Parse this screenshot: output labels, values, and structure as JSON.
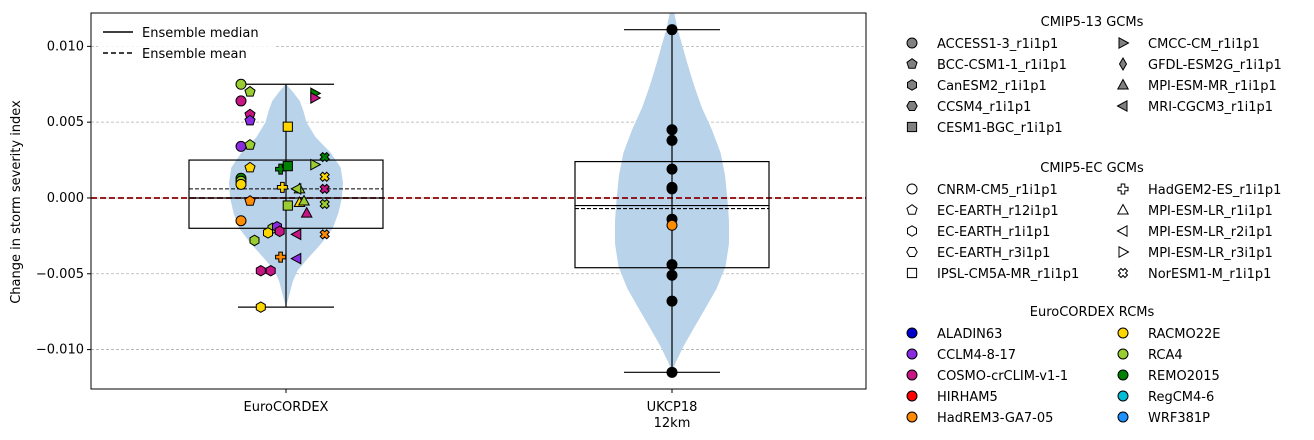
{
  "chart_data": {
    "type": "violin",
    "ylabel": "Change in storm severity index",
    "ylim": [
      -0.0126,
      0.0122
    ],
    "yticks": [
      -0.01,
      -0.005,
      0.0,
      0.005,
      0.01
    ],
    "ytick_labels": [
      "−0.010",
      "−0.005",
      "0.000",
      "0.005",
      "0.010"
    ],
    "grid": "y-dashed",
    "reference_line": {
      "y": 0.0,
      "color": "#8b0000",
      "style": "dashed"
    },
    "categories": [
      {
        "label": "EuroCORDEX",
        "label2": ""
      },
      {
        "label": "UKCP18",
        "label2": "12km"
      }
    ],
    "violin_color": "#b9d3ea",
    "groups": [
      {
        "category": 0,
        "min": -0.0072,
        "max": 0.0075,
        "q1": -0.002,
        "q3": 0.0025,
        "median": 0.0,
        "mean": 0.0006,
        "violin_halfwidth": [
          [
            -0.0072,
            0.0
          ],
          [
            -0.0065,
            0.05
          ],
          [
            -0.0055,
            0.12
          ],
          [
            -0.0048,
            0.2
          ],
          [
            -0.004,
            0.38
          ],
          [
            -0.003,
            0.62
          ],
          [
            -0.002,
            0.82
          ],
          [
            -0.001,
            0.92
          ],
          [
            0.0,
            0.98
          ],
          [
            0.001,
            1.0
          ],
          [
            0.002,
            0.96
          ],
          [
            0.003,
            0.78
          ],
          [
            0.004,
            0.52
          ],
          [
            0.005,
            0.36
          ],
          [
            0.0058,
            0.3
          ],
          [
            0.0064,
            0.24
          ],
          [
            0.007,
            0.12
          ],
          [
            0.0075,
            0.0
          ]
        ],
        "points": [
          {
            "dx": -0.5,
            "y": 0.0075,
            "shape": "circle",
            "color": "#9acd32"
          },
          {
            "dx": -0.4,
            "y": 0.007,
            "shape": "pentagon",
            "color": "#9acd32"
          },
          {
            "dx": -0.5,
            "y": 0.0064,
            "shape": "circle",
            "color": "#c71585"
          },
          {
            "dx": -0.4,
            "y": 0.0055,
            "shape": "pentagon",
            "color": "#c71585"
          },
          {
            "dx": -0.4,
            "y": 0.0051,
            "shape": "pentagon",
            "color": "#8a2be2"
          },
          {
            "dx": -0.5,
            "y": 0.0034,
            "shape": "circle",
            "color": "#8a2be2"
          },
          {
            "dx": -0.4,
            "y": 0.0035,
            "shape": "pentagon",
            "color": "#9acd32"
          },
          {
            "dx": -0.4,
            "y": 0.002,
            "shape": "pentagon",
            "color": "#ffd700"
          },
          {
            "dx": -0.5,
            "y": 0.0013,
            "shape": "circle",
            "color": "#008000"
          },
          {
            "dx": -0.5,
            "y": 0.0011,
            "shape": "circle",
            "color": "#9acd32"
          },
          {
            "dx": -0.5,
            "y": 0.0009,
            "shape": "circle",
            "color": "#ffd700"
          },
          {
            "dx": -0.4,
            "y": -0.0002,
            "shape": "pentagon",
            "color": "#ff8c00"
          },
          {
            "dx": -0.5,
            "y": -0.0015,
            "shape": "circle",
            "color": "#ff8c00"
          },
          {
            "dx": -0.35,
            "y": -0.0028,
            "shape": "hexagon",
            "color": "#9acd32"
          },
          {
            "dx": -0.15,
            "y": -0.002,
            "shape": "hexagon",
            "color": "#9acd32"
          },
          {
            "dx": -0.2,
            "y": -0.0023,
            "shape": "hexagon",
            "color": "#ffd700"
          },
          {
            "dx": -0.1,
            "y": -0.0019,
            "shape": "hexagon",
            "color": "#8a2be2"
          },
          {
            "dx": -0.07,
            "y": -0.0022,
            "shape": "hexagon",
            "color": "#c71585"
          },
          {
            "dx": -0.28,
            "y": -0.0048,
            "shape": "hexagon",
            "color": "#c71585"
          },
          {
            "dx": -0.17,
            "y": -0.0048,
            "shape": "hexagon",
            "color": "#c71585"
          },
          {
            "dx": -0.28,
            "y": -0.0072,
            "shape": "hexagon",
            "color": "#ffd700"
          },
          {
            "dx": -0.06,
            "y": 0.0019,
            "shape": "plus",
            "color": "#008000"
          },
          {
            "dx": -0.04,
            "y": 0.0007,
            "shape": "plus",
            "color": "#ffd700"
          },
          {
            "dx": -0.06,
            "y": -0.0039,
            "shape": "plus",
            "color": "#ff8c00"
          },
          {
            "dx": 0.02,
            "y": 0.0047,
            "shape": "square",
            "color": "#ffd700"
          },
          {
            "dx": 0.02,
            "y": 0.0021,
            "shape": "square",
            "color": "#008000"
          },
          {
            "dx": 0.02,
            "y": -0.0005,
            "shape": "square",
            "color": "#9acd32"
          },
          {
            "dx": 0.15,
            "y": -0.0003,
            "shape": "tri-up",
            "color": "#ffd700"
          },
          {
            "dx": 0.15,
            "y": 0.0006,
            "shape": "tri-up",
            "color": "#9acd32"
          },
          {
            "dx": 0.2,
            "y": -0.0002,
            "shape": "tri-up",
            "color": "#9acd32"
          },
          {
            "dx": 0.23,
            "y": -0.001,
            "shape": "tri-up",
            "color": "#c71585"
          },
          {
            "dx": 0.12,
            "y": 0.0006,
            "shape": "tri-left",
            "color": "#9acd32"
          },
          {
            "dx": 0.12,
            "y": -0.0024,
            "shape": "tri-left",
            "color": "#c71585"
          },
          {
            "dx": 0.12,
            "y": -0.004,
            "shape": "tri-left",
            "color": "#8a2be2"
          },
          {
            "dx": 0.32,
            "y": 0.0069,
            "shape": "tri-right",
            "color": "#008000"
          },
          {
            "dx": 0.32,
            "y": 0.0066,
            "shape": "tri-right",
            "color": "#c71585"
          },
          {
            "dx": 0.32,
            "y": 0.0022,
            "shape": "tri-right",
            "color": "#9acd32"
          },
          {
            "dx": 0.43,
            "y": 0.0027,
            "shape": "x",
            "color": "#008000"
          },
          {
            "dx": 0.43,
            "y": 0.0014,
            "shape": "x",
            "color": "#ffd700"
          },
          {
            "dx": 0.43,
            "y": 0.0006,
            "shape": "x",
            "color": "#c71585"
          },
          {
            "dx": 0.43,
            "y": -0.0004,
            "shape": "x",
            "color": "#9acd32"
          },
          {
            "dx": 0.43,
            "y": -0.0024,
            "shape": "x",
            "color": "#ff8c00"
          }
        ]
      },
      {
        "category": 1,
        "min": -0.0115,
        "max": 0.0111,
        "q1": -0.0046,
        "q3": 0.0024,
        "median": -0.0005,
        "mean": -0.0007,
        "violin_halfwidth": [
          [
            -0.0115,
            0.0
          ],
          [
            -0.0108,
            0.07
          ],
          [
            -0.0098,
            0.2
          ],
          [
            -0.0088,
            0.35
          ],
          [
            -0.0075,
            0.55
          ],
          [
            -0.006,
            0.78
          ],
          [
            -0.0045,
            0.94
          ],
          [
            -0.003,
            1.0
          ],
          [
            -0.0015,
            1.0
          ],
          [
            0.0,
            0.97
          ],
          [
            0.0015,
            0.93
          ],
          [
            0.003,
            0.85
          ],
          [
            0.0045,
            0.7
          ],
          [
            0.006,
            0.52
          ],
          [
            0.0075,
            0.38
          ],
          [
            0.009,
            0.26
          ],
          [
            0.0102,
            0.17
          ],
          [
            0.0111,
            0.1
          ],
          [
            0.0122,
            0.04
          ]
        ],
        "points": [
          {
            "dx": 0,
            "y": 0.0111,
            "shape": "circle",
            "color": "#000000"
          },
          {
            "dx": 0,
            "y": 0.0045,
            "shape": "circle",
            "color": "#000000"
          },
          {
            "dx": 0,
            "y": 0.0038,
            "shape": "circle",
            "color": "#000000"
          },
          {
            "dx": 0,
            "y": 0.0019,
            "shape": "circle",
            "color": "#000000"
          },
          {
            "dx": 0,
            "y": 0.0007,
            "shape": "circle",
            "color": "#000000"
          },
          {
            "dx": 0,
            "y": 0.0006,
            "shape": "circle",
            "color": "#000000"
          },
          {
            "dx": 0,
            "y": -0.0014,
            "shape": "circle",
            "color": "#000000"
          },
          {
            "dx": 0,
            "y": -0.0018,
            "shape": "circle",
            "color": "#ff8c00"
          },
          {
            "dx": 0,
            "y": -0.0044,
            "shape": "circle",
            "color": "#000000"
          },
          {
            "dx": 0,
            "y": -0.0051,
            "shape": "circle",
            "color": "#000000"
          },
          {
            "dx": 0,
            "y": -0.0068,
            "shape": "circle",
            "color": "#000000"
          },
          {
            "dx": 0,
            "y": -0.0115,
            "shape": "circle",
            "color": "#000000"
          }
        ]
      }
    ],
    "inner_legend": [
      {
        "label": "Ensemble median",
        "style": "solid"
      },
      {
        "label": "Ensemble mean",
        "style": "dashed"
      }
    ],
    "legend_sections": [
      {
        "title": "CMIP5-13 GCMs",
        "filled": true,
        "fill": "#808080",
        "items": [
          {
            "label": "ACCESS1-3_r1i1p1",
            "shape": "circle"
          },
          {
            "label": "BCC-CSM1-1_r1i1p1",
            "shape": "pentagon"
          },
          {
            "label": "CanESM2_r1i1p1",
            "shape": "hexagon"
          },
          {
            "label": "CCSM4_r1i1p1",
            "shape": "hexagon2"
          },
          {
            "label": "CESM1-BGC_r1i1p1",
            "shape": "square"
          },
          {
            "label": "CMCC-CM_r1i1p1",
            "shape": "tri-right"
          },
          {
            "label": "GFDL-ESM2G_r1i1p1",
            "shape": "diamond"
          },
          {
            "label": "MPI-ESM-MR_r1i1p1",
            "shape": "tri-up"
          },
          {
            "label": "MRI-CGCM3_r1i1p1",
            "shape": "tri-left"
          }
        ]
      },
      {
        "title": "CMIP5-EC GCMs",
        "filled": false,
        "fill": "#ffffff",
        "items": [
          {
            "label": "CNRM-CM5_r1i1p1",
            "shape": "circle"
          },
          {
            "label": "EC-EARTH_r12i1p1",
            "shape": "pentagon"
          },
          {
            "label": "EC-EARTH_r1i1p1",
            "shape": "hexagon"
          },
          {
            "label": "EC-EARTH_r3i1p1",
            "shape": "hexagon2"
          },
          {
            "label": "IPSL-CM5A-MR_r1i1p1",
            "shape": "square"
          },
          {
            "label": "HadGEM2-ES_r1i1p1",
            "shape": "plus"
          },
          {
            "label": "MPI-ESM-LR_r1i1p1",
            "shape": "tri-up"
          },
          {
            "label": "MPI-ESM-LR_r2i1p1",
            "shape": "tri-left"
          },
          {
            "label": "MPI-ESM-LR_r3i1p1",
            "shape": "tri-right"
          },
          {
            "label": "NorESM1-M_r1i1p1",
            "shape": "x"
          }
        ]
      },
      {
        "title": "EuroCORDEX RCMs",
        "filled": true,
        "items": [
          {
            "label": "ALADIN63",
            "shape": "circle",
            "color": "#0000cd"
          },
          {
            "label": "CCLM4-8-17",
            "shape": "circle",
            "color": "#8a2be2"
          },
          {
            "label": "COSMO-crCLIM-v1-1",
            "shape": "circle",
            "color": "#c71585"
          },
          {
            "label": "HIRHAM5",
            "shape": "circle",
            "color": "#ff0000"
          },
          {
            "label": "HadREM3-GA7-05",
            "shape": "circle",
            "color": "#ff8c00"
          },
          {
            "label": "RACMO22E",
            "shape": "circle",
            "color": "#ffd700"
          },
          {
            "label": "RCA4",
            "shape": "circle",
            "color": "#9acd32"
          },
          {
            "label": "REMO2015",
            "shape": "circle",
            "color": "#008000"
          },
          {
            "label": "RegCM4-6",
            "shape": "circle",
            "color": "#00bcd4"
          },
          {
            "label": "WRF381P",
            "shape": "circle",
            "color": "#1e90ff"
          }
        ]
      }
    ]
  }
}
